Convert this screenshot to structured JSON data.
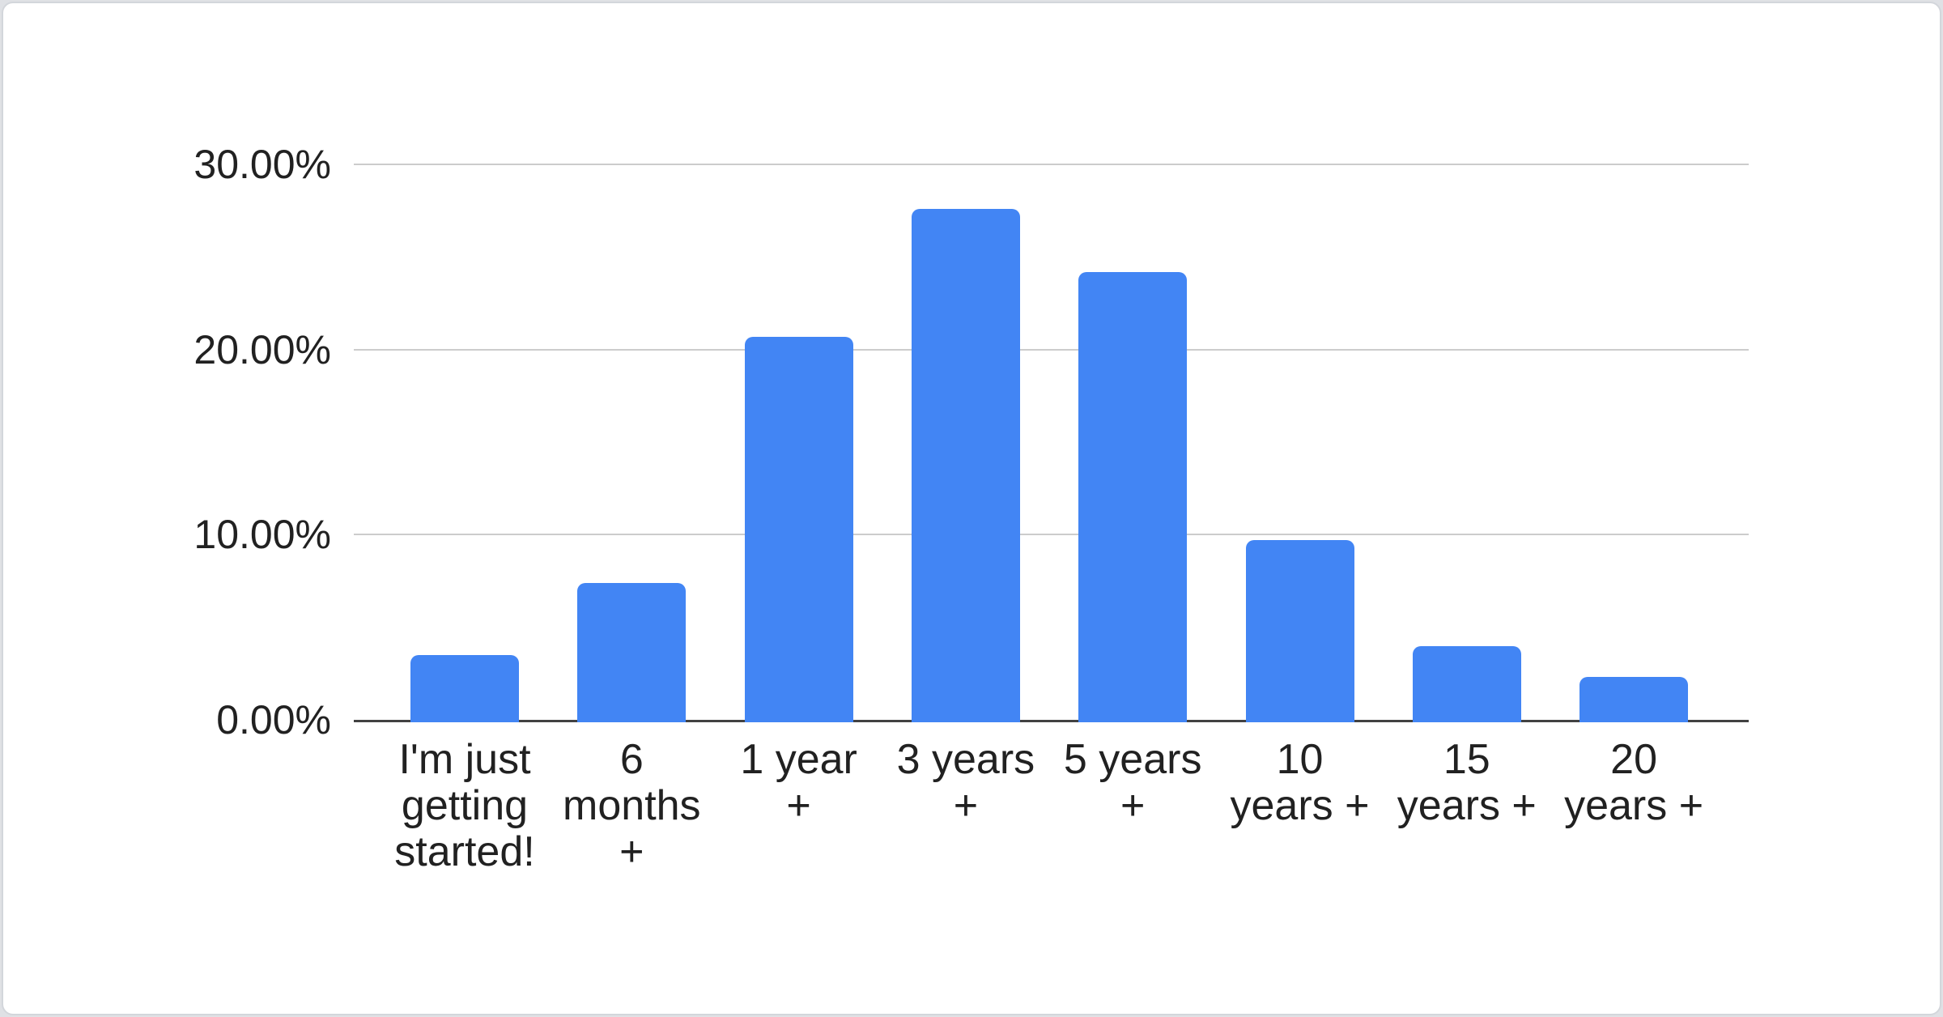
{
  "chart_data": {
    "type": "bar",
    "title": "",
    "categories": [
      "I'm just getting started!",
      "6 months +",
      "1 year +",
      "3 years +",
      "5 years +",
      "10 years +",
      "15 years +",
      "20 years +"
    ],
    "category_lines": [
      [
        "I'm just",
        "getting",
        "started!"
      ],
      [
        "6",
        "months",
        "+"
      ],
      [
        "1 year",
        "+"
      ],
      [
        "3 years",
        "+"
      ],
      [
        "5 years",
        "+"
      ],
      [
        "10",
        "years +"
      ],
      [
        "15",
        "years +"
      ],
      [
        "20",
        "years +"
      ]
    ],
    "values": [
      3.5,
      7.4,
      20.7,
      27.6,
      24.2,
      9.7,
      4.0,
      2.3
    ],
    "unit": "%",
    "xlabel": "",
    "ylabel": "",
    "ylim": [
      0,
      30
    ],
    "y_ticks": [
      {
        "value": 0,
        "label": "0.00%"
      },
      {
        "value": 10,
        "label": "10.00%"
      },
      {
        "value": 20,
        "label": "20.00%"
      },
      {
        "value": 30,
        "label": "30.00%"
      }
    ],
    "grid": true,
    "legend_position": "none",
    "colors": {
      "bar": "#4285f4",
      "gridline": "#cccccc",
      "axis_line": "#424242",
      "text": "#212121",
      "card_background": "#ffffff",
      "card_border": "#d3d6db",
      "page_background": "#dfe1e5"
    }
  }
}
